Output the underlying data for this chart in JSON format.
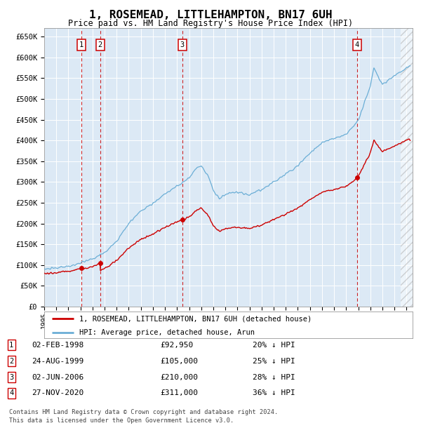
{
  "title": "1, ROSEMEAD, LITTLEHAMPTON, BN17 6UH",
  "subtitle": "Price paid vs. HM Land Registry's House Price Index (HPI)",
  "ylim": [
    0,
    670000
  ],
  "yticks": [
    0,
    50000,
    100000,
    150000,
    200000,
    250000,
    300000,
    350000,
    400000,
    450000,
    500000,
    550000,
    600000,
    650000
  ],
  "ytick_labels": [
    "£0",
    "£50K",
    "£100K",
    "£150K",
    "£200K",
    "£250K",
    "£300K",
    "£350K",
    "£400K",
    "£450K",
    "£500K",
    "£550K",
    "£600K",
    "£650K"
  ],
  "xlim_start": 1995.0,
  "xlim_end": 2025.5,
  "plot_bg_color": "#dce9f5",
  "hpi_line_color": "#6baed6",
  "price_line_color": "#cc0000",
  "vline_color": "#cc0000",
  "transactions": [
    {
      "num": 1,
      "date_num": 1998.09,
      "price": 92950,
      "label": "02-FEB-1998",
      "price_str": "£92,950",
      "pct": "20% ↓ HPI"
    },
    {
      "num": 2,
      "date_num": 1999.64,
      "price": 105000,
      "label": "24-AUG-1999",
      "price_str": "£105,000",
      "pct": "25% ↓ HPI"
    },
    {
      "num": 3,
      "date_num": 2006.42,
      "price": 210000,
      "label": "02-JUN-2006",
      "price_str": "£210,000",
      "pct": "28% ↓ HPI"
    },
    {
      "num": 4,
      "date_num": 2020.9,
      "price": 311000,
      "label": "27-NOV-2020",
      "price_str": "£311,000",
      "pct": "36% ↓ HPI"
    }
  ],
  "legend_line_label": "1, ROSEMEAD, LITTLEHAMPTON, BN17 6UH (detached house)",
  "legend_hpi_label": "HPI: Average price, detached house, Arun",
  "footer1": "Contains HM Land Registry data © Crown copyright and database right 2024.",
  "footer2": "This data is licensed under the Open Government Licence v3.0."
}
